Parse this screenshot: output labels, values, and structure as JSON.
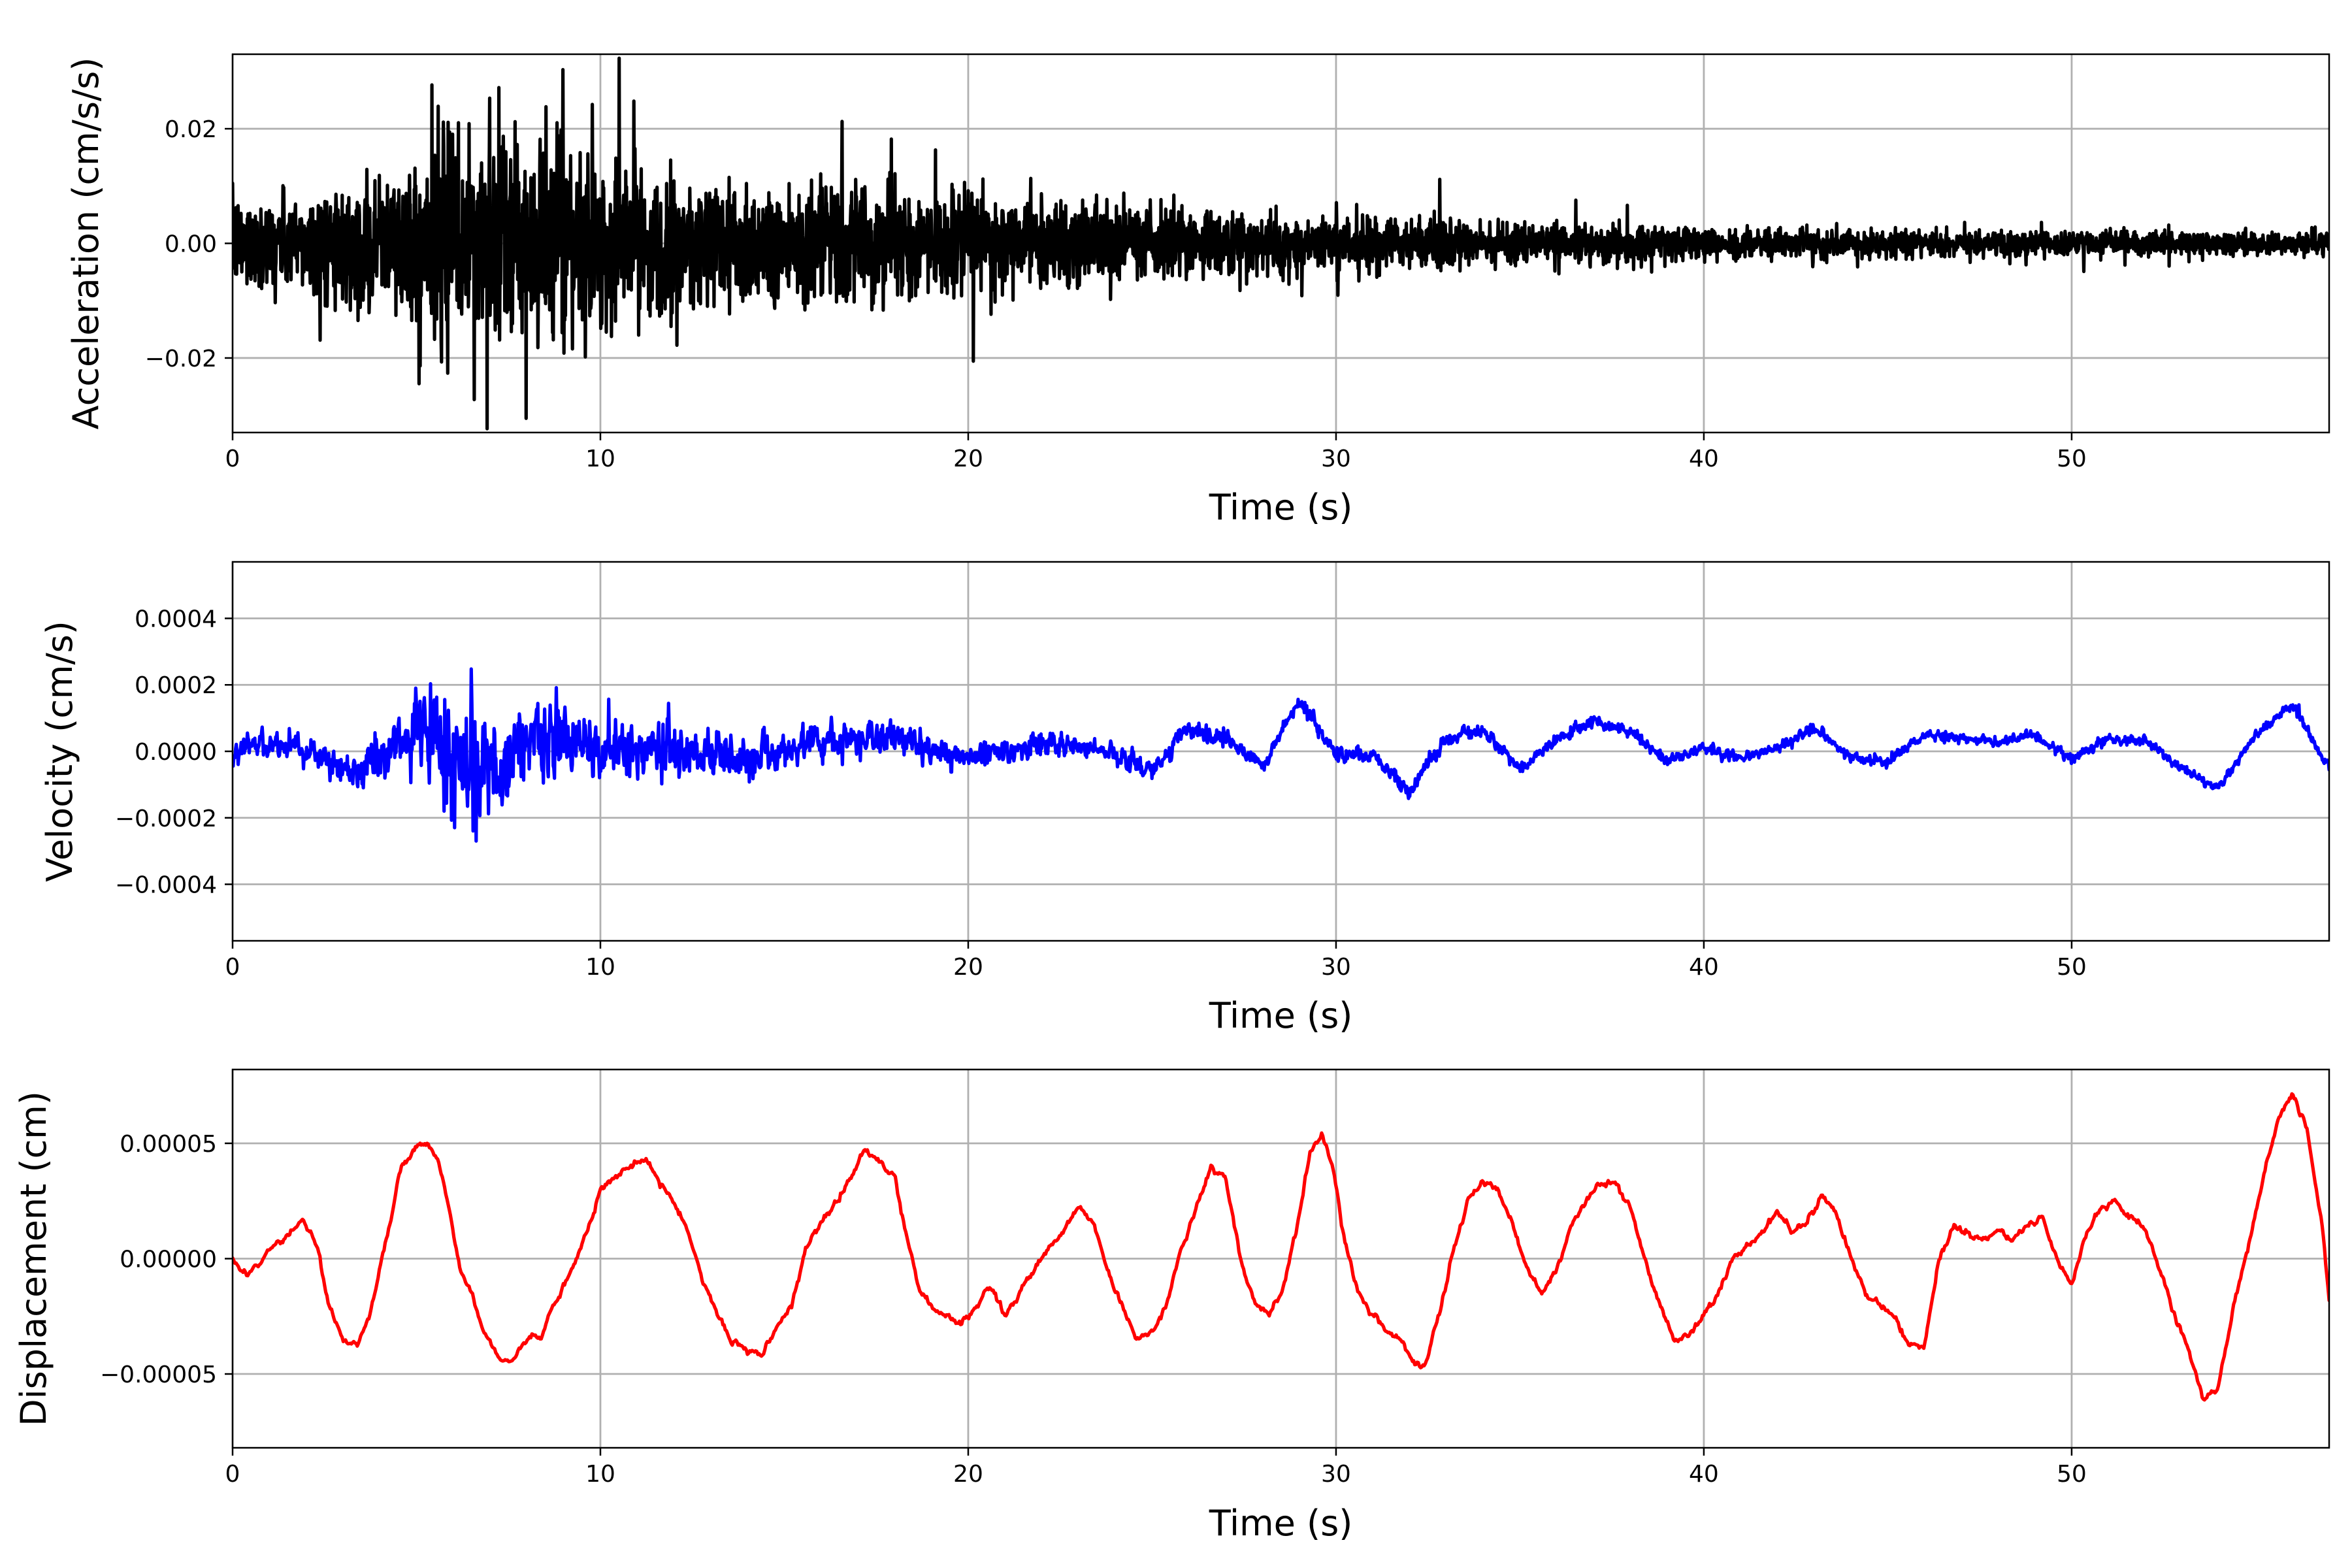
{
  "chart_data": [
    {
      "type": "line",
      "xlabel": "Time (s)",
      "ylabel": "Acceleration (cm/s/s)",
      "xlim": [
        0,
        57
      ],
      "ylim": [
        -0.033,
        0.033
      ],
      "xticks": [
        0,
        10,
        20,
        30,
        40,
        50
      ],
      "xtick_labels": [
        "0",
        "10",
        "20",
        "30",
        "40",
        "50"
      ],
      "yticks": [
        -0.02,
        0.0,
        0.02
      ],
      "ytick_labels": [
        "−0.02",
        "0.00",
        "0.02"
      ],
      "grid": true,
      "color": "#000000",
      "envelope": {
        "x": [
          0,
          2,
          4,
          5,
          6,
          7,
          8,
          9,
          10,
          12,
          14,
          16,
          18,
          20,
          22,
          25,
          28,
          30,
          35,
          40,
          45,
          50,
          57
        ],
        "amplitude": [
          0.009,
          0.01,
          0.012,
          0.017,
          0.024,
          0.022,
          0.02,
          0.019,
          0.016,
          0.014,
          0.013,
          0.012,
          0.011,
          0.0095,
          0.0085,
          0.0075,
          0.006,
          0.0052,
          0.0042,
          0.0032,
          0.0027,
          0.0024,
          0.0022
        ]
      }
    },
    {
      "type": "line",
      "xlabel": "Time (s)",
      "ylabel": "Velocity (cm/s)",
      "xlim": [
        0,
        57
      ],
      "ylim": [
        -0.00057,
        0.00057
      ],
      "xticks": [
        0,
        10,
        20,
        30,
        40,
        50
      ],
      "xtick_labels": [
        "0",
        "10",
        "20",
        "30",
        "40",
        "50"
      ],
      "yticks": [
        -0.0004,
        -0.0002,
        0.0,
        0.0002,
        0.0004
      ],
      "ytick_labels": [
        "−0.0004",
        "−0.0002",
        "0.0000",
        "0.0002",
        "0.0004"
      ],
      "grid": true,
      "color": "#0000ff",
      "trend": {
        "x": [
          0,
          1,
          2,
          3,
          4,
          5,
          6,
          7,
          8,
          9,
          10,
          12,
          14,
          16,
          18,
          20,
          22,
          24,
          25,
          26,
          27,
          28,
          29,
          30,
          31,
          32,
          33,
          34,
          35,
          36,
          37,
          38,
          39,
          40,
          41,
          42,
          43,
          44,
          45,
          46,
          47,
          48,
          49,
          50,
          51,
          52,
          53,
          54,
          55,
          56,
          57
        ],
        "y": [
          0.0,
          3e-05,
          1e-05,
          -6e-05,
          -3e-05,
          5e-05,
          0.0,
          -5e-05,
          2e-05,
          4e-05,
          0.0,
          1e-05,
          -2e-05,
          3e-05,
          4e-05,
          -2e-05,
          2e-05,
          0.0,
          -6e-05,
          7e-05,
          4e-05,
          -4e-05,
          0.00015,
          0.0,
          -1e-05,
          -0.00012,
          4e-05,
          6e-05,
          -5e-05,
          4e-05,
          9e-05,
          6e-05,
          -3e-05,
          1e-05,
          -2e-05,
          1e-05,
          7e-05,
          -2e-05,
          -3e-05,
          5e-05,
          4e-05,
          3e-05,
          5e-05,
          -2e-05,
          4e-05,
          3e-05,
          -5e-05,
          -0.00011,
          5e-05,
          0.00014,
          -5e-05
        ]
      },
      "noise_envelope": {
        "x": [
          0,
          3,
          4,
          5,
          6,
          6.5,
          7,
          8,
          9,
          10,
          12,
          14,
          16,
          20,
          25,
          30,
          40,
          57
        ],
        "amplitude": [
          5e-05,
          6e-05,
          9e-05,
          0.00016,
          0.00028,
          0.0003,
          0.00022,
          0.00017,
          0.00015,
          0.00011,
          0.0001,
          8e-05,
          7e-05,
          5e-05,
          4e-05,
          3e-05,
          2.2e-05,
          2e-05
        ]
      }
    },
    {
      "type": "line",
      "xlabel": "Time (s)",
      "ylabel": "Displacement (cm)",
      "xlim": [
        0,
        57
      ],
      "ylim": [
        -8.2e-05,
        8.2e-05
      ],
      "xticks": [
        0,
        10,
        20,
        30,
        40,
        50
      ],
      "xtick_labels": [
        "0",
        "10",
        "20",
        "30",
        "40",
        "50"
      ],
      "yticks": [
        -5e-05,
        0.0,
        5e-05
      ],
      "ytick_labels": [
        "−0.00005",
        "0.00000",
        "0.00005"
      ],
      "grid": true,
      "color": "#ff0000",
      "x": [
        0,
        0.3,
        0.7,
        1.0,
        1.5,
        1.9,
        2.3,
        2.6,
        3.0,
        3.4,
        3.8,
        4.2,
        4.6,
        5.0,
        5.3,
        5.6,
        5.9,
        6.2,
        6.5,
        6.8,
        7.2,
        7.6,
        8.0,
        8.4,
        8.8,
        9.2,
        9.6,
        10.0,
        10.4,
        10.8,
        11.2,
        11.6,
        12.0,
        12.4,
        12.8,
        13.2,
        13.6,
        14.0,
        14.4,
        14.8,
        15.2,
        15.6,
        16.0,
        16.4,
        16.8,
        17.2,
        17.6,
        18.0,
        18.4,
        18.7,
        19.0,
        19.4,
        19.8,
        20.2,
        20.6,
        21.0,
        21.4,
        21.8,
        22.2,
        22.6,
        23.0,
        23.4,
        23.8,
        24.2,
        24.6,
        25.0,
        25.4,
        25.8,
        26.2,
        26.6,
        27.0,
        27.4,
        27.8,
        28.2,
        28.6,
        29.0,
        29.3,
        29.6,
        29.9,
        30.2,
        30.6,
        31.0,
        31.4,
        31.8,
        32.1,
        32.4,
        32.8,
        33.2,
        33.6,
        34.0,
        34.4,
        34.8,
        35.2,
        35.6,
        36.0,
        36.4,
        36.8,
        37.2,
        37.6,
        38.0,
        38.4,
        38.8,
        39.2,
        39.6,
        40.0,
        40.4,
        40.8,
        41.2,
        41.6,
        42.0,
        42.4,
        42.8,
        43.2,
        43.6,
        44.0,
        44.4,
        44.8,
        45.2,
        45.6,
        46.0,
        46.4,
        46.8,
        47.2,
        47.6,
        48.0,
        48.4,
        48.8,
        49.2,
        49.6,
        50.0,
        50.4,
        50.8,
        51.2,
        51.6,
        52.0,
        52.4,
        52.8,
        53.2,
        53.6,
        54.0,
        54.4,
        54.8,
        55.2,
        55.6,
        56.0,
        56.4,
        56.8,
        57.0
      ],
      "y": [
        0.0,
        -6e-06,
        -4e-06,
        5e-06,
        1e-05,
        1.8e-05,
        5e-06,
        -2e-05,
        -3.5e-05,
        -3.7e-05,
        -2e-05,
        1e-05,
        4e-05,
        4.8e-05,
        5e-05,
        4.2e-05,
        2e-05,
        -5e-06,
        -1.5e-05,
        -3e-05,
        -4.2e-05,
        -4.5e-05,
        -3.5e-05,
        -3.3e-05,
        -1.8e-05,
        -5e-06,
        1e-05,
        3e-05,
        3.5e-05,
        4e-05,
        4.3e-05,
        3.4e-05,
        2.5e-05,
        1.2e-05,
        -1e-05,
        -2.5e-05,
        -3.5e-05,
        -4e-05,
        -4.1e-05,
        -3e-05,
        -2e-05,
        5e-06,
        1.5e-05,
        2.5e-05,
        3.5e-05,
        4.8e-05,
        4.2e-05,
        3.5e-05,
        5e-06,
        -1.5e-05,
        -2e-05,
        -2.5e-05,
        -2.8e-05,
        -2.2e-05,
        -1.2e-05,
        -2.4e-05,
        -1.5e-05,
        -5e-06,
        5e-06,
        1.2e-05,
        2.2e-05,
        1.5e-05,
        -5e-06,
        -2e-05,
        -3.5e-05,
        -3.2e-05,
        -2e-05,
        5e-06,
        2.2e-05,
        4e-05,
        3.5e-05,
        0.0,
        -2e-05,
        -2.5e-05,
        -1e-05,
        2e-05,
        4.5e-05,
        5.5e-05,
        4e-05,
        1e-05,
        -1.5e-05,
        -2.5e-05,
        -3.2e-05,
        -3.5e-05,
        -4.5e-05,
        -4.7e-05,
        -2.5e-05,
        5e-06,
        2.5e-05,
        3.3e-05,
        3e-05,
        1.5e-05,
        -5e-06,
        -1.5e-05,
        -5e-06,
        1.5e-05,
        2.5e-05,
        3.3e-05,
        3.2e-05,
        2.2e-05,
        0.0,
        -2e-05,
        -3.5e-05,
        -3.3e-05,
        -2.5e-05,
        -1.5e-05,
        0.0,
        5e-06,
        1.2e-05,
        2e-05,
        1.2e-05,
        1.5e-05,
        2.8e-05,
        2e-05,
        0.0,
        -1.5e-05,
        -2e-05,
        -2.5e-05,
        -3.8e-05,
        -3.8e-05,
        0.0,
        1.5e-05,
        1e-05,
        8e-06,
        1.2e-05,
        8e-06,
        1.5e-05,
        1.8e-05,
        0.0,
        -1.2e-05,
        1e-05,
        2.2e-05,
        2.5e-05,
        1.8e-05,
        1.2e-05,
        -5e-06,
        -2.5e-05,
        -4e-05,
        -6.2e-05,
        -5.5e-05,
        -2e-05,
        5e-06,
        3.5e-05,
        6e-05,
        7.2e-05,
        5.5e-05,
        1.5e-05,
        -1.8e-05
      ]
    }
  ]
}
